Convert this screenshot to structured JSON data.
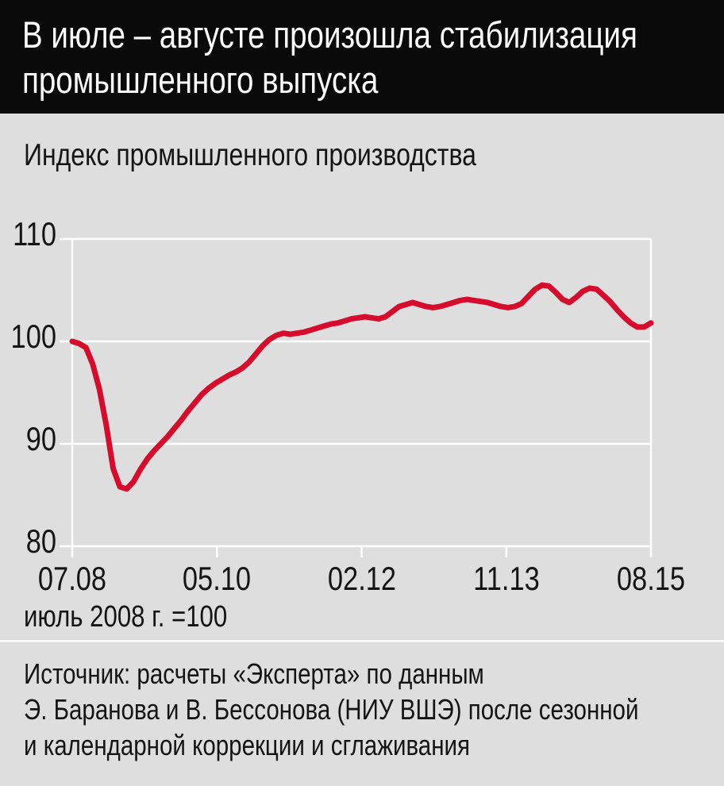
{
  "header": {
    "title_line1": "В июле – августе произошла стабилизация",
    "title_line2": "промышленного выпуска"
  },
  "chart": {
    "title": "Индекс промышленного производства",
    "note": "июль 2008 г. =100"
  },
  "source": {
    "lines": [
      "Источник: расчеты «Эксперта» по данным",
      "Э. Баранова и В. Бессонова (НИУ ВШЭ) после сезонной",
      "и календарной коррекции и сглаживания"
    ]
  },
  "colors": {
    "background": "#dedede",
    "header_bg": "#0a0a0a",
    "grid": "#ffffff",
    "line": "#d60c2c",
    "text": "#141414"
  },
  "chart_data": {
    "type": "line",
    "title": "Индекс промышленного производства",
    "note": "июль 2008 г. =100",
    "x_unit": "months from 07.2008 to 08.2015",
    "xtick_labels": [
      "07.08",
      "05.10",
      "02.12",
      "11.13",
      "08.15"
    ],
    "ytick_labels": [
      "110",
      "100",
      "90",
      "80"
    ],
    "yticks": [
      110,
      100,
      90,
      80
    ],
    "ylim": [
      80,
      110
    ],
    "grid": true,
    "legend": "none",
    "line_color": "#d60c2c",
    "series": [
      {
        "name": "Индекс промышленного производства",
        "values": [
          100.0,
          99.8,
          99.4,
          97.8,
          95.3,
          91.8,
          87.6,
          85.8,
          85.6,
          86.3,
          87.5,
          88.5,
          89.3,
          90.0,
          90.7,
          91.5,
          92.3,
          93.2,
          94.0,
          94.8,
          95.4,
          95.9,
          96.3,
          96.7,
          97.0,
          97.4,
          98.0,
          98.8,
          99.6,
          100.2,
          100.6,
          100.8,
          100.7,
          100.8,
          100.9,
          101.1,
          101.3,
          101.5,
          101.7,
          101.8,
          102.0,
          102.2,
          102.3,
          102.4,
          102.3,
          102.2,
          102.4,
          102.9,
          103.4,
          103.6,
          103.8,
          103.6,
          103.4,
          103.3,
          103.4,
          103.6,
          103.8,
          104.0,
          104.1,
          104.0,
          103.9,
          103.8,
          103.6,
          103.4,
          103.3,
          103.4,
          103.7,
          104.4,
          105.1,
          105.5,
          105.4,
          104.8,
          104.1,
          103.8,
          104.3,
          104.9,
          105.2,
          105.1,
          104.5,
          103.9,
          103.1,
          102.4,
          101.8,
          101.4,
          101.4,
          101.8
        ]
      }
    ]
  }
}
